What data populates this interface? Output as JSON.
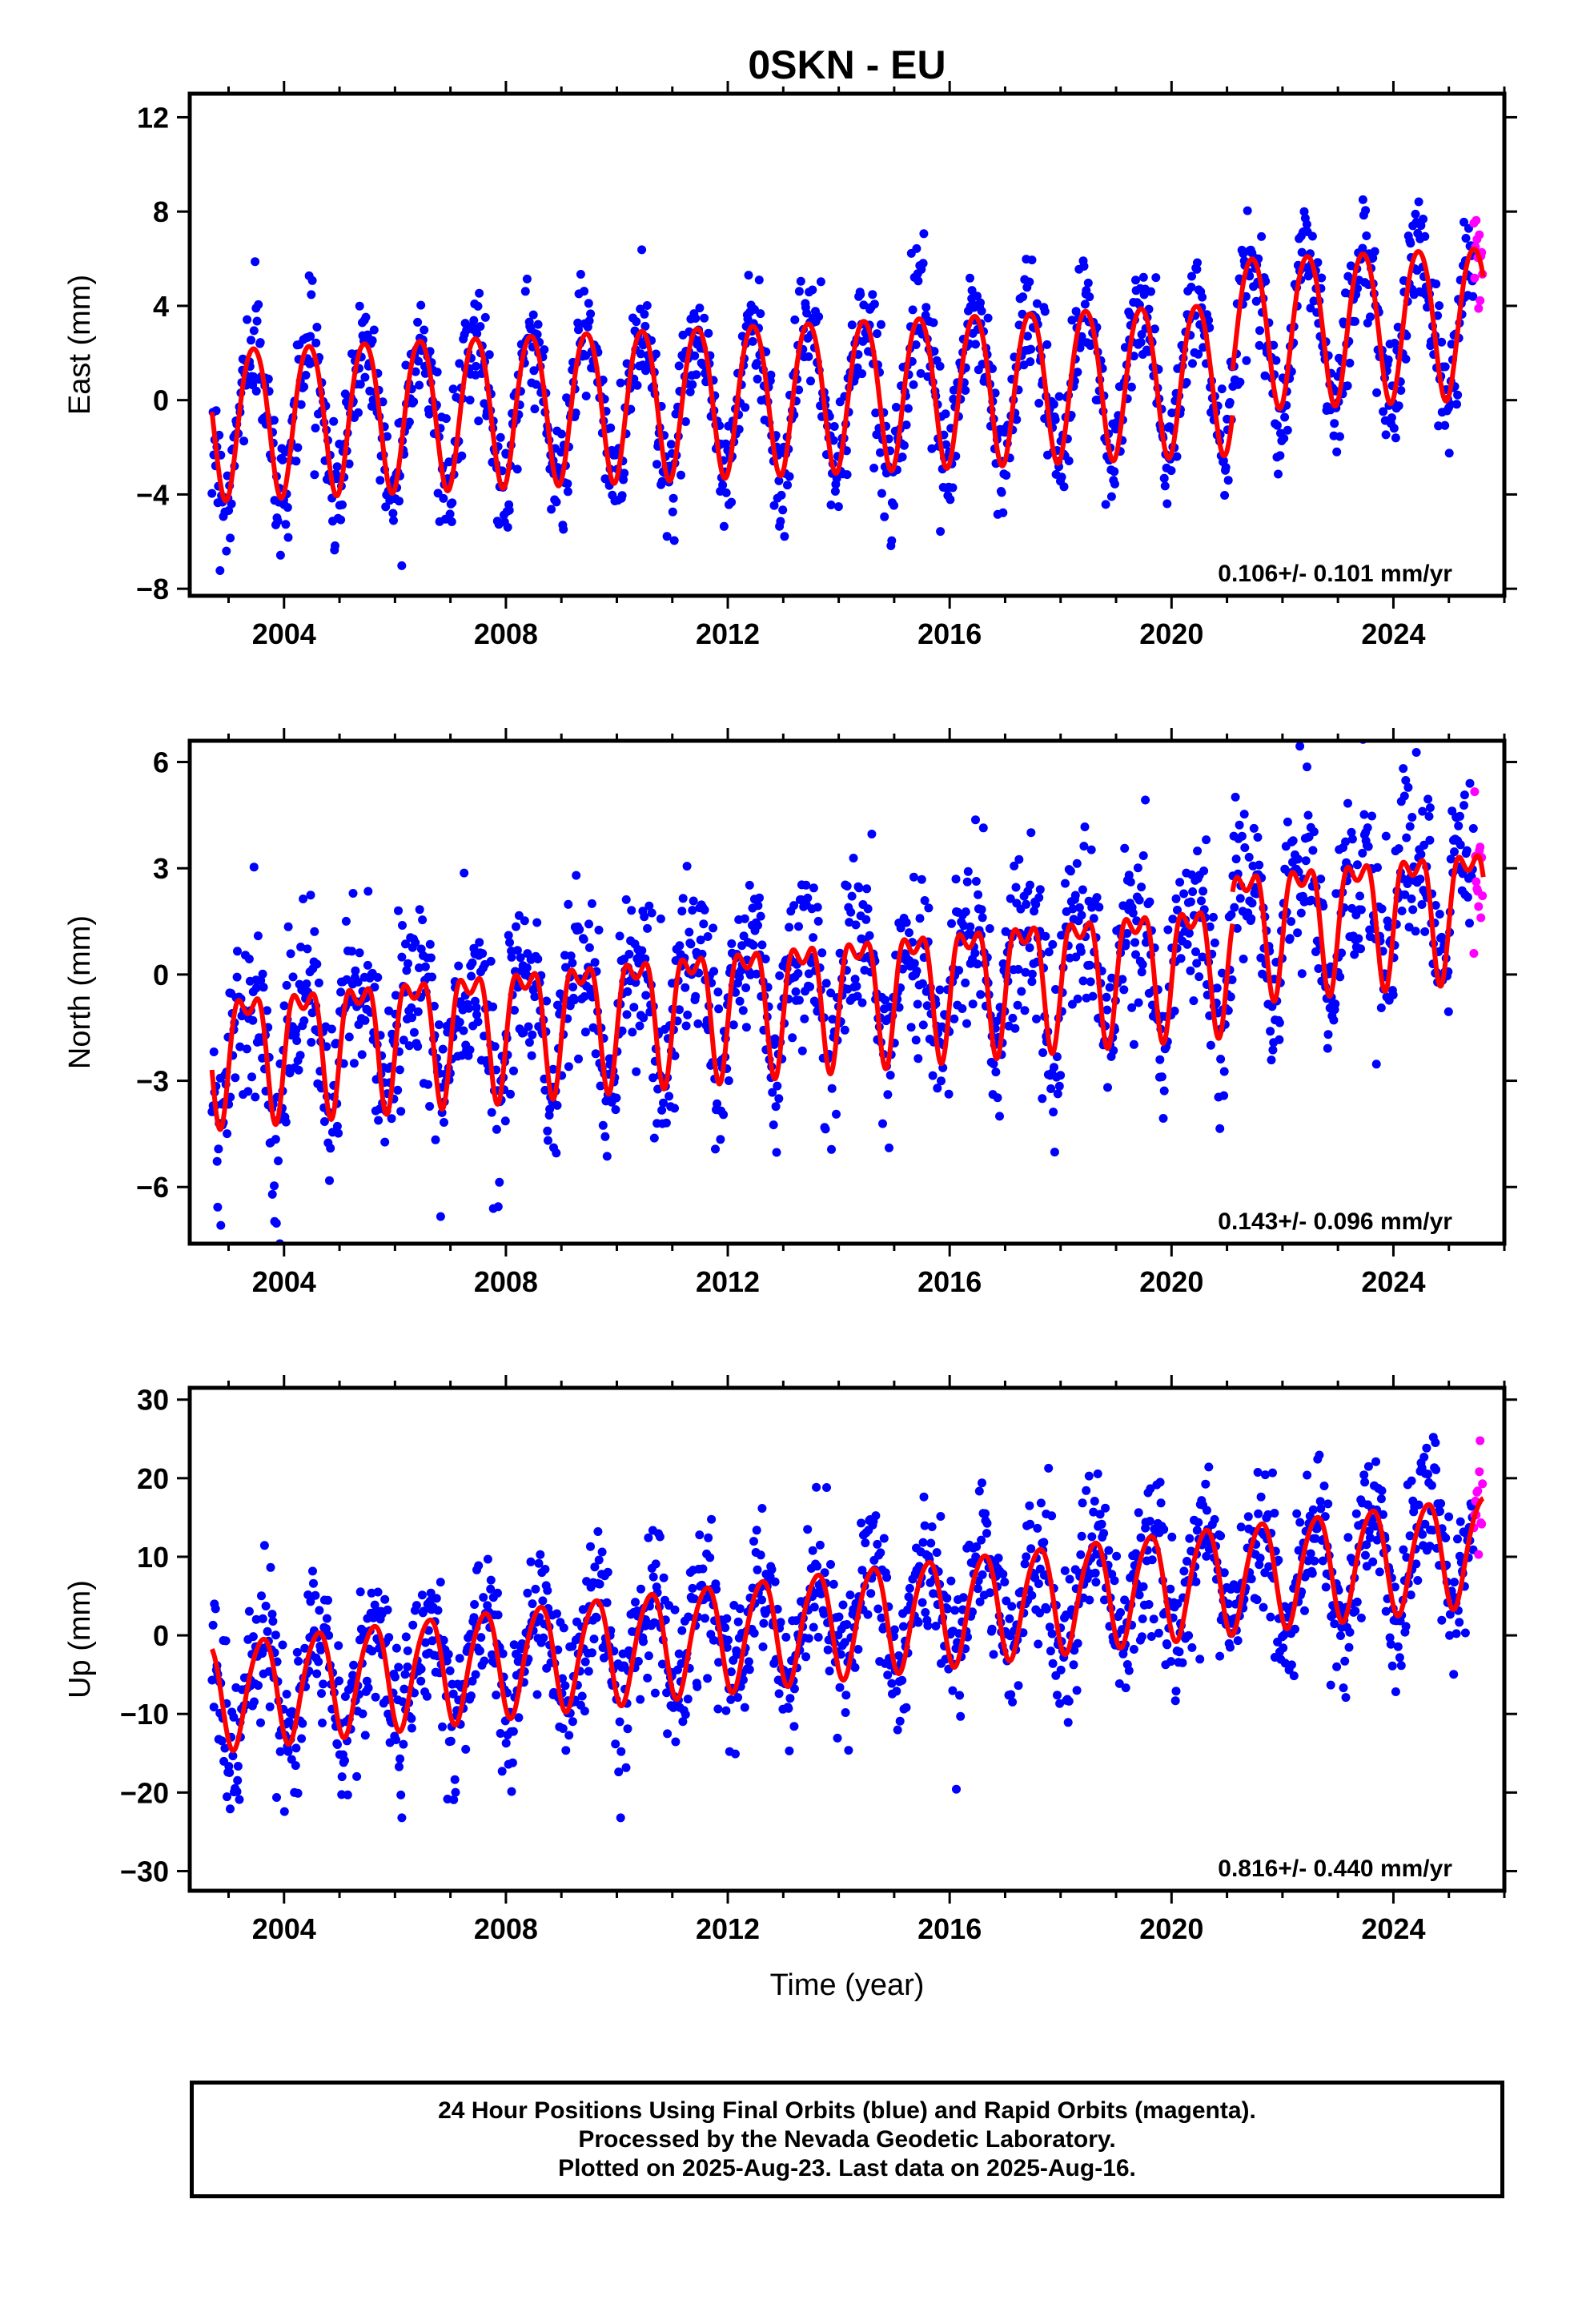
{
  "title": "0SKN - EU",
  "caption": {
    "line1": "24 Hour Positions Using Final Orbits (blue) and Rapid Orbits (magenta).",
    "line2": "Processed by the Nevada Geodetic Laboratory.",
    "line3": "Plotted on 2025-Aug-23. Last data on 2025-Aug-16."
  },
  "colors": {
    "final": "#0000ff",
    "rapid": "#ff00ff",
    "model": "#ff0000"
  },
  "chart_data": [
    {
      "type": "scatter",
      "name": "East",
      "ylabel": "East (mm)",
      "xlabel": "",
      "xlim": [
        2002.3,
        2026.0
      ],
      "ylim": [
        -8.3,
        13.0
      ],
      "xticks": [
        2004,
        2008,
        2012,
        2016,
        2020,
        2024
      ],
      "yticks": [
        -8,
        -4,
        0,
        4,
        8,
        12
      ],
      "rate_text": "0.106+/- 0.101 mm/yr",
      "data_span": [
        2002.7,
        2025.62
      ],
      "rapid_span": [
        2025.45,
        2025.62
      ],
      "model": {
        "segments": [
          {
            "from": 2002.7,
            "to": 2021.1,
            "offset": -0.8,
            "rate": 0.106,
            "annual_amp": 3.2,
            "annual_peak": 0.45,
            "semi_amp": 0.3,
            "semi_phase": 0.2
          },
          {
            "from": 2021.1,
            "to": 2025.62,
            "offset": 1.1,
            "rate": 0.106,
            "annual_amp": 3.2,
            "annual_peak": 0.45,
            "semi_amp": 0.3,
            "semi_phase": 0.2
          }
        ],
        "amp_start": 3.0,
        "amp_end": 3.2
      },
      "scatter_sd": 1.25,
      "points_per_year": 70
    },
    {
      "type": "scatter",
      "name": "North",
      "ylabel": "North (mm)",
      "xlabel": "",
      "xlim": [
        2002.3,
        2026.0
      ],
      "ylim": [
        -7.6,
        6.6
      ],
      "xticks": [
        2004,
        2008,
        2012,
        2016,
        2020,
        2024
      ],
      "yticks": [
        -6,
        -3,
        0,
        3,
        6
      ],
      "rate_text": "0.143+/- 0.096 mm/yr",
      "data_span": [
        2002.7,
        2025.62
      ],
      "rapid_span": [
        2025.45,
        2025.62
      ],
      "model": {
        "segments": [
          {
            "from": 2002.7,
            "to": 2021.1,
            "offset": -2.0,
            "rate": 0.143,
            "annual_amp": 1.6,
            "annual_peak": 0.35,
            "semi_amp": 0.8,
            "semi_phase": 0.1
          },
          {
            "from": 2021.1,
            "to": 2025.62,
            "offset": -1.1,
            "rate": 0.143,
            "annual_amp": 1.6,
            "annual_peak": 0.35,
            "semi_amp": 0.8,
            "semi_phase": 0.1
          }
        ]
      },
      "scatter_sd": 1.2,
      "points_per_year": 70
    },
    {
      "type": "scatter",
      "name": "Up",
      "ylabel": "Up (mm)",
      "xlabel": "Time (year)",
      "xlim": [
        2002.3,
        2026.0
      ],
      "ylim": [
        -32.5,
        31.5
      ],
      "xticks": [
        2004,
        2008,
        2012,
        2016,
        2020,
        2024
      ],
      "yticks": [
        -30,
        -20,
        -10,
        0,
        10,
        20,
        30
      ],
      "rate_text": "0.816+/- 0.440 mm/yr",
      "data_span": [
        2002.7,
        2025.62
      ],
      "rapid_span": [
        2025.45,
        2025.62
      ],
      "model": {
        "segments": [
          {
            "from": 2002.7,
            "to": 2025.62,
            "offset": -7.5,
            "rate": 0.816,
            "annual_amp": 6.8,
            "annual_peak": 0.6,
            "semi_amp": 0.8,
            "semi_phase": 0.3
          }
        ]
      },
      "scatter_sd": 4.6,
      "points_per_year": 70
    }
  ]
}
